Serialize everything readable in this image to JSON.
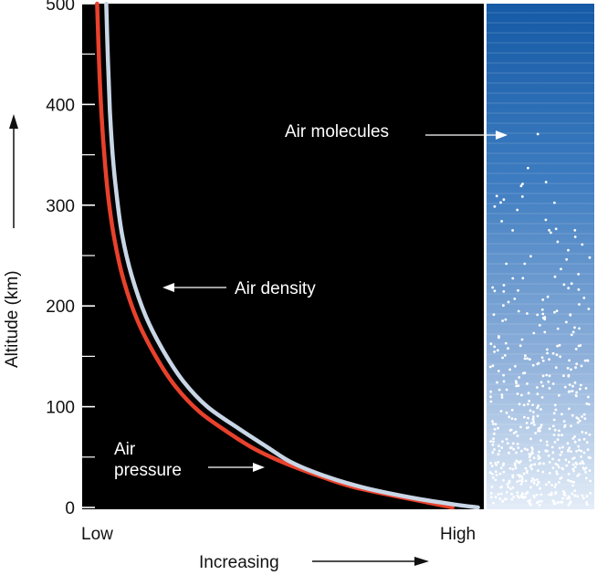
{
  "chart_data": {
    "type": "line",
    "ylabel": "Altitude (km)",
    "xlabel": "Increasing",
    "x_tick_labels": [
      "Low",
      "High"
    ],
    "y_ticks": [
      0,
      100,
      200,
      300,
      400,
      500
    ],
    "ylim": [
      0,
      500
    ],
    "series": [
      {
        "name": "Air pressure",
        "label_lines": [
          "Air",
          "pressure"
        ],
        "color": "#e8412c",
        "x": [
          0.926,
          0.8,
          0.68,
          0.6,
          0.53,
          0.47,
          0.42,
          0.36,
          0.29,
          0.23,
          0.18,
          0.135,
          0.1,
          0.077,
          0.062,
          0.052,
          0.044,
          0.038,
          0.033
        ],
        "y": [
          0,
          10,
          20,
          30,
          40,
          50,
          60,
          75,
          95,
          120,
          150,
          185,
          225,
          265,
          305,
          345,
          390,
          440,
          500
        ]
      },
      {
        "name": "Air density",
        "label_lines": [
          "Air density"
        ],
        "color": "#c9d6e6",
        "x": [
          0.99,
          0.93,
          0.82,
          0.7,
          0.6,
          0.52,
          0.46,
          0.39,
          0.31,
          0.25,
          0.2,
          0.155,
          0.12,
          0.096,
          0.082,
          0.072,
          0.065,
          0.06,
          0.056
        ],
        "y": [
          0,
          3,
          10,
          20,
          32,
          45,
          60,
          78,
          100,
          125,
          155,
          190,
          230,
          270,
          310,
          350,
          395,
          445,
          500
        ]
      }
    ],
    "annotations": [
      "Air molecules"
    ],
    "background": "#000000",
    "molecule_panel_colors": [
      "#1a5aa8",
      "#ffffff"
    ]
  }
}
